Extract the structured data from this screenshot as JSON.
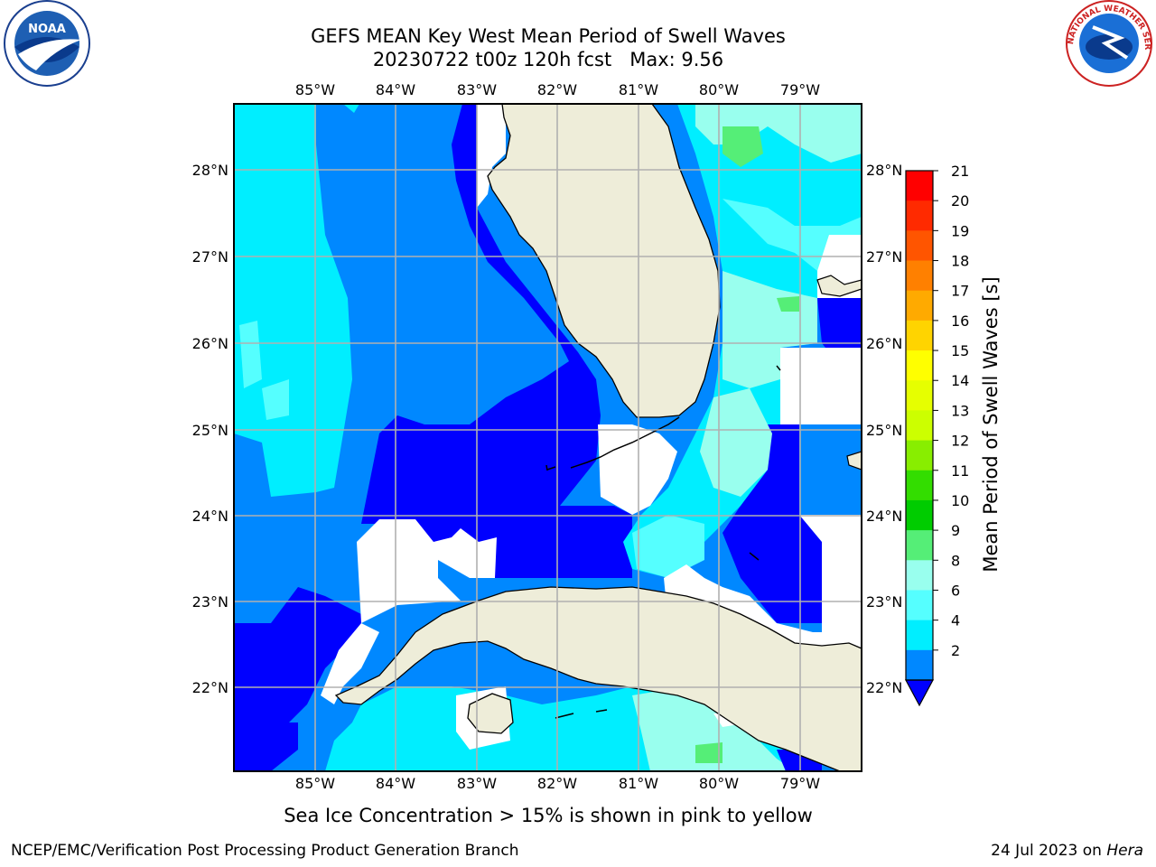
{
  "title_line1": "GEFS MEAN Key West Mean Period of Swell Waves",
  "title_line2": "20230722 t00z 120h fcst   Max: 9.56",
  "subtitle": "Sea Ice Concentration > 15% is shown in pink to yellow",
  "footer_left": "NCEP/EMC/Verification Post Processing Product Generation Branch",
  "footer_right_date": "24 Jul 2023 on ",
  "footer_right_host": "Hera",
  "logos": {
    "left": "NOAA",
    "right": "NATIONAL WEATHER SERVICE"
  },
  "map": {
    "lon_labels": [
      "85°W",
      "84°W",
      "83°W",
      "82°W",
      "81°W",
      "80°W",
      "79°W"
    ],
    "lat_labels": [
      "28°N",
      "27°N",
      "26°N",
      "25°N",
      "24°N",
      "23°N",
      "22°N"
    ],
    "lon_range": [
      -86.0,
      -78.25
    ],
    "lat_range": [
      21.05,
      28.75
    ],
    "land_color": "#eeedd9",
    "grid_color": "#b0b0b0"
  },
  "colorbar": {
    "label": "Mean Period of Swell Waves [s]",
    "ticks": [
      "21",
      "20",
      "19",
      "18",
      "17",
      "16",
      "15",
      "14",
      "13",
      "12",
      "11",
      "10",
      "9",
      "8",
      "6",
      "4",
      "2"
    ],
    "colors": [
      "#ff0000",
      "#ff2a00",
      "#ff5500",
      "#ff8000",
      "#ffaa00",
      "#ffd400",
      "#ffff00",
      "#e6ff00",
      "#ccff00",
      "#88ee00",
      "#33dd00",
      "#00cc00",
      "#55ee77",
      "#99ffee",
      "#55ffff",
      "#00eeff",
      "#0088ff"
    ],
    "extend_color": "#0000ff"
  }
}
